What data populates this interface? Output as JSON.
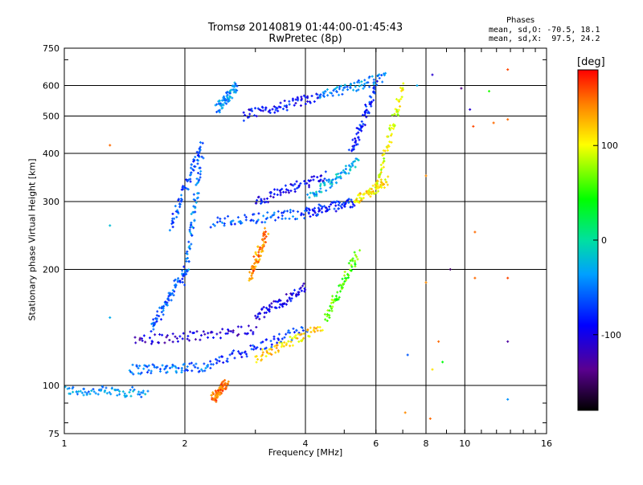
{
  "chart_data": {
    "type": "scatter",
    "title": "Tromsø 20140819 01:44:00-01:45:43",
    "subtitle": "RwPretec (8p)",
    "xlabel": "Frequency [MHz]",
    "ylabel": "Stationary phase Virtual Height [km]",
    "x_scale": "log",
    "y_scale": "log",
    "xlim": [
      1,
      16
    ],
    "ylim": [
      75,
      750
    ],
    "x_ticks": [
      1,
      2,
      4,
      6,
      8,
      10,
      16
    ],
    "x_tick_labels": [
      "1",
      "2",
      "4",
      "6",
      "8",
      "10",
      "16"
    ],
    "y_ticks": [
      75,
      100,
      200,
      300,
      400,
      500,
      600,
      750
    ],
    "y_tick_labels": [
      "75",
      "100",
      "200",
      "300",
      "400",
      "500",
      "600",
      "750"
    ],
    "grid": true,
    "phases_note": {
      "title": "Phases",
      "line1": "mean, sd,O: -70.5, 18.1",
      "line2": "mean, sd,X:  97.5, 24.2"
    },
    "colorbar": {
      "label": "[deg]",
      "range": [
        -180,
        180
      ],
      "ticks": [
        100,
        0,
        -100
      ],
      "tick_labels": [
        "100",
        "0",
        "-100"
      ]
    },
    "traces": [
      {
        "x0": 1.0,
        "h0": 97,
        "x1": 1.6,
        "h1": 96,
        "phase": -40
      },
      {
        "x0": 1.45,
        "h0": 110,
        "x1": 2.3,
        "h1": 112,
        "phase": -55
      },
      {
        "x0": 2.3,
        "h0": 113,
        "x1": 4.0,
        "h1": 140,
        "phase": -75
      },
      {
        "x0": 3.0,
        "h0": 118,
        "x1": 4.4,
        "h1": 142,
        "phase": 115
      },
      {
        "x0": 1.65,
        "h0": 140,
        "x1": 2.0,
        "h1": 200,
        "phase": -60
      },
      {
        "x0": 2.0,
        "h0": 185,
        "x1": 2.2,
        "h1": 400,
        "phase": -50
      },
      {
        "x0": 1.85,
        "h0": 260,
        "x1": 2.2,
        "h1": 420,
        "phase": -65
      },
      {
        "x0": 2.35,
        "h0": 265,
        "x1": 4.0,
        "h1": 280,
        "phase": -60
      },
      {
        "x0": 4.0,
        "h0": 280,
        "x1": 5.3,
        "h1": 300,
        "phase": -80
      },
      {
        "x0": 5.3,
        "h0": 300,
        "x1": 6.4,
        "h1": 340,
        "phase": 110
      },
      {
        "x0": 6.0,
        "h0": 320,
        "x1": 7.0,
        "h1": 600,
        "phase": 95
      },
      {
        "x0": 2.8,
        "h0": 500,
        "x1": 4.3,
        "h1": 560,
        "phase": -90
      },
      {
        "x0": 4.3,
        "h0": 560,
        "x1": 6.3,
        "h1": 630,
        "phase": -45
      },
      {
        "x0": 2.4,
        "h0": 520,
        "x1": 2.7,
        "h1": 600,
        "phase": -40
      },
      {
        "x0": 2.9,
        "h0": 190,
        "x1": 3.2,
        "h1": 250,
        "phase": 140
      },
      {
        "x0": 3.0,
        "h0": 300,
        "x1": 4.5,
        "h1": 350,
        "phase": -95
      },
      {
        "x0": 4.5,
        "h0": 150,
        "x1": 5.4,
        "h1": 220,
        "phase": 60
      },
      {
        "x0": 3.0,
        "h0": 150,
        "x1": 4.0,
        "h1": 180,
        "phase": -100
      },
      {
        "x0": 5.2,
        "h0": 400,
        "x1": 6.0,
        "h1": 600,
        "phase": -80
      },
      {
        "x0": 4.1,
        "h0": 310,
        "x1": 5.4,
        "h1": 380,
        "phase": -30
      },
      {
        "x0": 2.35,
        "h0": 92,
        "x1": 2.55,
        "h1": 102,
        "phase": 150
      },
      {
        "x0": 1.5,
        "h0": 130,
        "x1": 3.0,
        "h1": 140,
        "phase": -110
      }
    ],
    "scattered_points": [
      {
        "x": 1.3,
        "h": 420,
        "phase": 150
      },
      {
        "x": 1.3,
        "h": 260,
        "phase": -20
      },
      {
        "x": 1.3,
        "h": 150,
        "phase": -30
      },
      {
        "x": 8.3,
        "h": 640,
        "phase": -110
      },
      {
        "x": 9.8,
        "h": 590,
        "phase": -140
      },
      {
        "x": 10.3,
        "h": 520,
        "phase": -110
      },
      {
        "x": 10.5,
        "h": 470,
        "phase": 160
      },
      {
        "x": 11.5,
        "h": 580,
        "phase": 50
      },
      {
        "x": 11.8,
        "h": 480,
        "phase": 150
      },
      {
        "x": 12.8,
        "h": 660,
        "phase": 160
      },
      {
        "x": 12.8,
        "h": 490,
        "phase": 150
      },
      {
        "x": 12.8,
        "h": 190,
        "phase": 160
      },
      {
        "x": 12.8,
        "h": 130,
        "phase": -130
      },
      {
        "x": 12.8,
        "h": 92,
        "phase": -40
      },
      {
        "x": 10.6,
        "h": 250,
        "phase": 150
      },
      {
        "x": 9.2,
        "h": 200,
        "phase": -150
      },
      {
        "x": 10.6,
        "h": 190,
        "phase": 150
      },
      {
        "x": 8.0,
        "h": 185,
        "phase": 140
      },
      {
        "x": 8.3,
        "h": 110,
        "phase": 110
      },
      {
        "x": 7.2,
        "h": 120,
        "phase": -60
      },
      {
        "x": 8.6,
        "h": 130,
        "phase": 150
      },
      {
        "x": 8.8,
        "h": 115,
        "phase": 40
      },
      {
        "x": 8.2,
        "h": 82,
        "phase": 150
      },
      {
        "x": 7.1,
        "h": 85,
        "phase": 140
      },
      {
        "x": 7.6,
        "h": 600,
        "phase": -30
      },
      {
        "x": 8.0,
        "h": 350,
        "phase": 140
      }
    ]
  }
}
